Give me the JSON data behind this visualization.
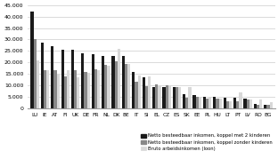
{
  "categories": [
    "LU",
    "IE",
    "AT",
    "FI",
    "UK",
    "DE",
    "FR",
    "NL",
    "DK",
    "BE",
    "IT",
    "SI",
    "EL",
    "CZ",
    "ES",
    "SK",
    "EE",
    "PL",
    "HU",
    "LT",
    "PT",
    "LV",
    "RO",
    "BG"
  ],
  "series1": [
    42000,
    28500,
    27000,
    25500,
    25500,
    24000,
    23500,
    23000,
    23000,
    23000,
    16000,
    13500,
    9500,
    9200,
    9300,
    6200,
    6000,
    5200,
    5000,
    4800,
    4900,
    4200,
    2000,
    1800
  ],
  "series2": [
    30000,
    16500,
    16500,
    14000,
    16500,
    15800,
    17000,
    19000,
    20500,
    19500,
    11500,
    9800,
    10500,
    10200,
    9500,
    4800,
    5000,
    4500,
    4300,
    3200,
    3200,
    3800,
    1800,
    1700
  ],
  "series3": [
    21000,
    16500,
    14800,
    16500,
    13500,
    15500,
    16500,
    18500,
    26000,
    19500,
    14500,
    14000,
    10200,
    10200,
    9200,
    9200,
    4800,
    5200,
    4500,
    3000,
    7000,
    4000,
    4000,
    2700
  ],
  "color1": "#1a1a1a",
  "color2": "#888888",
  "color3": "#d8d8d8",
  "ylim": [
    0,
    45000
  ],
  "yticks": [
    0,
    5000,
    10000,
    15000,
    20000,
    25000,
    30000,
    35000,
    40000,
    45000
  ],
  "ytick_labels": [
    "0",
    "5.000",
    "10.000",
    "15.000",
    "20.000",
    "25.000",
    "30.000",
    "35.000",
    "40.000",
    "45.000"
  ],
  "legend1": "Netto besteedbaar inkomen, koppel met 2 kinderen",
  "legend2": "Netto besteedbaar inkomen, koppel zonder kinderen",
  "legend3": "Bruto arbeidsinkomen (loon)"
}
